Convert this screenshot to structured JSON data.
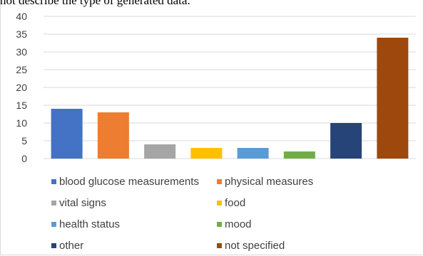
{
  "caption": "not describe the type of generated data.",
  "chart_data": {
    "type": "bar",
    "title": "",
    "xlabel": "",
    "ylabel": "",
    "ylim": [
      0,
      40
    ],
    "yticks": [
      0,
      5,
      10,
      15,
      20,
      25,
      30,
      35,
      40
    ],
    "grid": true,
    "legend_position": "bottom",
    "series": [
      {
        "name": "blood glucose measurements",
        "value": 14,
        "color": "#4472c4"
      },
      {
        "name": "physical measures",
        "value": 13,
        "color": "#ed7d31"
      },
      {
        "name": "vital signs",
        "value": 4,
        "color": "#a5a5a5"
      },
      {
        "name": "food",
        "value": 3,
        "color": "#ffc000"
      },
      {
        "name": "health status",
        "value": 3,
        "color": "#5b9bd5"
      },
      {
        "name": "mood",
        "value": 2,
        "color": "#70ad47"
      },
      {
        "name": "other",
        "value": 10,
        "color": "#264478"
      },
      {
        "name": "not specified",
        "value": 34,
        "color": "#9e480e"
      }
    ]
  }
}
